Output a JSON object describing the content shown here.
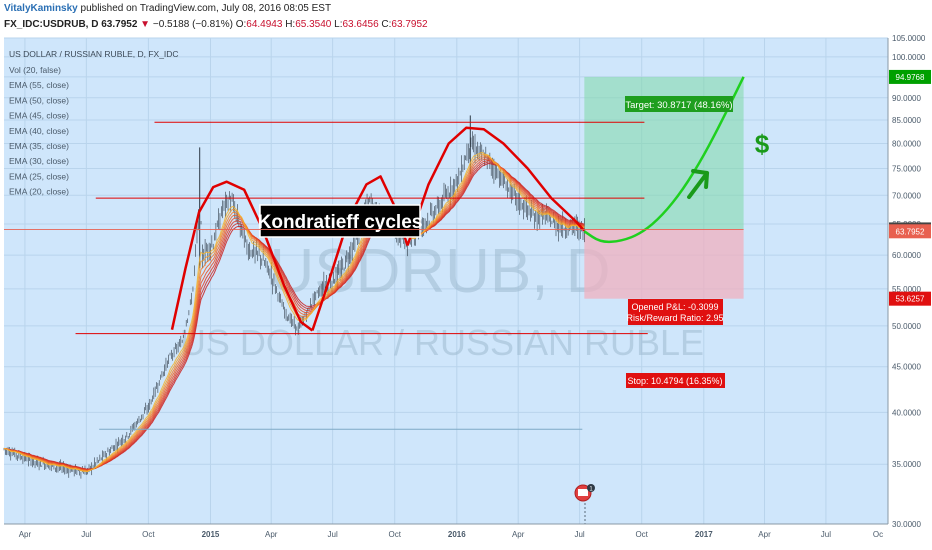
{
  "header": {
    "author": "VitalyKaminsky",
    "published": " published on TradingView.com, July 08, 2016 08:05 EST",
    "symbol": "FX_IDC:USDRUB, D",
    "last": "63.7952",
    "arrow": "▼",
    "change": "−0.5188 (−0.81%)",
    "ohlc_o_label": "O:",
    "ohlc_o": "64.4943",
    "ohlc_h_label": "H:",
    "ohlc_h": "65.3540",
    "ohlc_l_label": "L:",
    "ohlc_l": "63.6456",
    "ohlc_c_label": "C:",
    "ohlc_c": "63.7952"
  },
  "legend": {
    "title": "US DOLLAR / RUSSIAN RUBLE, D, FX_IDC",
    "items": [
      "Vol (20, false)",
      "EMA (55, close)",
      "EMA (50, close)",
      "EMA (45, close)",
      "EMA (40, close)",
      "EMA (35, close)",
      "EMA (30, close)",
      "EMA (25, close)",
      "EMA (20, close)"
    ]
  },
  "watermark": {
    "symbol": "USDRUB, D",
    "name": "US DOLLAR / RUSSIAN RUBLE"
  },
  "annotations": {
    "kondratieff": "Kondratieff cycles",
    "target": "Target: 30.8717 (48.16%)",
    "opened_pl": "Opened P&L: -0.3099",
    "risk_reward": "Risk/Reward Ratio: 2.95",
    "stop": "Stop: 10.4794 (16.35%)",
    "dollar": "$",
    "event_badge": "1"
  },
  "price_axis": {
    "ticks": [
      "105.0000",
      "100.0000",
      "95.0000",
      "90.0000",
      "85.0000",
      "80.0000",
      "75.0000",
      "70.0000",
      "65.0000",
      "60.0000",
      "55.0000",
      "50.0000",
      "45.0000",
      "40.0000",
      "35.0000",
      "30.0000"
    ],
    "markers": [
      {
        "label": "94.9768",
        "value": 94.9768,
        "color": "#00a000"
      },
      {
        "label": "64.1051",
        "value": 64.1051,
        "color": "#444444"
      },
      {
        "label": "63.7952",
        "value": 63.7952,
        "color": "#e86050"
      },
      {
        "label": "53.6257",
        "value": 53.6257,
        "color": "#e01010"
      }
    ]
  },
  "time_axis": {
    "ticks": [
      "Apr",
      "Jul",
      "Oct",
      "2015",
      "Apr",
      "Jul",
      "Oct",
      "2016",
      "Apr",
      "Jul",
      "Oct",
      "2017",
      "Apr",
      "Jul",
      "Oc"
    ]
  },
  "colors": {
    "background": "#cfe6fb",
    "candle": "#2e3a46",
    "ema": [
      "#c81e1e",
      "#d52a20",
      "#e03a22",
      "#e84c24",
      "#ef6226",
      "#f37a28",
      "#f59a2a",
      "#f5b22c"
    ],
    "cycle": "#e00000",
    "level": "#e00000",
    "projection": "#1fd01f",
    "target_zone": "#7fd8a8",
    "stop_zone": "#f0b0bf"
  },
  "chart_data": {
    "type": "line",
    "title": "US DOLLAR / RUSSIAN RUBLE, D, FX_IDC",
    "ylim": [
      30,
      105
    ],
    "y_scale": "log",
    "x_range": [
      "2014-03",
      "2017-10"
    ],
    "grid": true,
    "series": [
      {
        "name": "USDRUB",
        "x": [
          "2014-03-01",
          "2014-04-15",
          "2014-06-01",
          "2014-07-01",
          "2014-08-01",
          "2014-09-01",
          "2014-10-01",
          "2014-11-01",
          "2014-11-20",
          "2014-12-05",
          "2014-12-16",
          "2014-12-20",
          "2015-01-05",
          "2015-01-20",
          "2015-01-30",
          "2015-02-10",
          "2015-02-25",
          "2015-03-15",
          "2015-04-01",
          "2015-04-20",
          "2015-05-10",
          "2015-05-20",
          "2015-06-05",
          "2015-06-20",
          "2015-07-10",
          "2015-07-25",
          "2015-08-10",
          "2015-08-24",
          "2015-09-05",
          "2015-09-20",
          "2015-10-05",
          "2015-10-20",
          "2015-11-05",
          "2015-11-20",
          "2015-12-05",
          "2015-12-20",
          "2016-01-05",
          "2016-01-21",
          "2016-02-05",
          "2016-02-20",
          "2016-03-05",
          "2016-03-25",
          "2016-04-10",
          "2016-04-25",
          "2016-05-10",
          "2016-05-25",
          "2016-06-10",
          "2016-06-25",
          "2016-07-08"
        ],
        "values": [
          36.4,
          35.2,
          34.6,
          34.3,
          36.0,
          37.8,
          40.5,
          46.0,
          48.0,
          54.0,
          68.0,
          60.0,
          62.0,
          68.0,
          69.5,
          66.0,
          61.0,
          60.0,
          57.0,
          52.0,
          49.5,
          51.0,
          54.0,
          55.5,
          57.0,
          60.0,
          64.0,
          69.0,
          67.0,
          66.0,
          63.0,
          62.2,
          64.0,
          66.0,
          68.0,
          70.5,
          73.5,
          80.0,
          78.0,
          76.0,
          73.5,
          70.0,
          68.0,
          66.0,
          66.5,
          65.0,
          64.5,
          64.6,
          63.8
        ]
      },
      {
        "name": "Projection",
        "x": [
          "2016-07-08",
          "2016-08-01",
          "2016-09-01",
          "2016-10-01",
          "2016-11-01",
          "2016-12-01",
          "2017-01-01",
          "2017-02-01",
          "2017-03-01"
        ],
        "values": [
          63.8,
          62.0,
          62.2,
          63.5,
          66.5,
          71.0,
          77.5,
          86.0,
          95.0
        ]
      }
    ],
    "levels": [
      {
        "name": "resistance-high",
        "value": 84.5
      },
      {
        "name": "mid-level",
        "value": 69.5
      },
      {
        "name": "support-low",
        "value": 49.0
      }
    ],
    "position": {
      "entry": 64.1051,
      "target": 94.9768,
      "stop": 53.6257
    }
  }
}
